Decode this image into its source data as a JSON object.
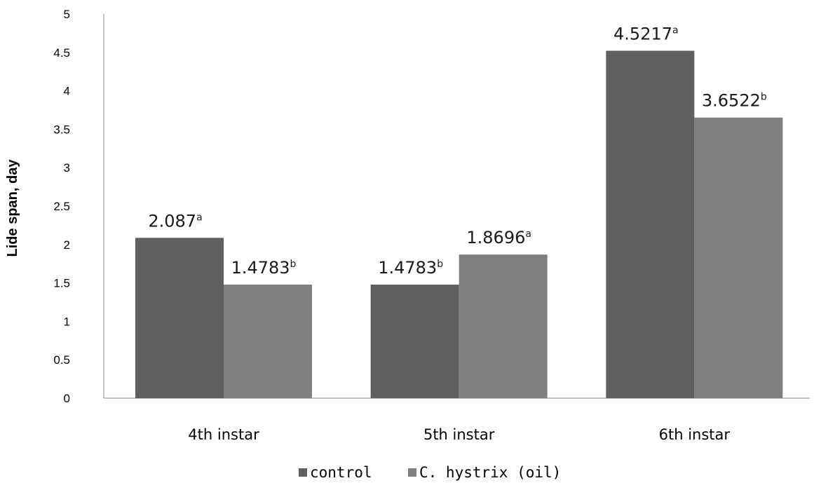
{
  "chart_data": {
    "type": "bar",
    "categories": [
      "4th instar",
      "5th instar",
      "6th instar"
    ],
    "series": [
      {
        "name": "control",
        "color": "#606060",
        "values": [
          2.087,
          1.4783,
          4.5217
        ],
        "labels": [
          "2.087",
          "1.4783",
          "4.5217"
        ],
        "letters": [
          "a",
          "b",
          "a"
        ]
      },
      {
        "name": "C. hystrix (oil)",
        "color": "#808080",
        "values": [
          1.4783,
          1.8696,
          3.6522
        ],
        "labels": [
          "1.4783",
          "1.8696",
          "3.6522"
        ],
        "letters": [
          "b",
          "a",
          "b"
        ]
      }
    ],
    "ylabel": "Lide span, day",
    "xlabel": "",
    "ylim": [
      0,
      5
    ],
    "yticks": [
      "0",
      "0.5",
      "1",
      "1.5",
      "2",
      "2.5",
      "3",
      "3.5",
      "4",
      "4.5",
      "5"
    ],
    "grid": false,
    "legend": "bottom-center",
    "legend_labels": [
      "control",
      "C. hystrix (oil)"
    ]
  }
}
